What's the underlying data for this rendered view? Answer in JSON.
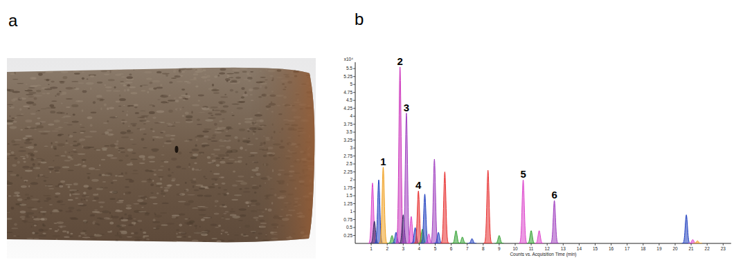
{
  "panel_labels": [
    "a",
    "b"
  ],
  "chart_data": {
    "type": "chromatogram",
    "xlabel": "Counts vs. Acquisition Time (min)",
    "ylabel": "x10⁴",
    "xlim": [
      0,
      23.5
    ],
    "ylim": [
      0,
      5.7
    ],
    "xticks": [
      1,
      2,
      3,
      4,
      5,
      6,
      7,
      8,
      9,
      10,
      11,
      12,
      13,
      14,
      15,
      16,
      17,
      18,
      19,
      20,
      21,
      22,
      23
    ],
    "yticks": [
      0.25,
      0.5,
      0.75,
      1,
      1.25,
      1.5,
      1.75,
      2,
      2.25,
      2.5,
      2.75,
      3,
      3.25,
      3.5,
      3.75,
      4,
      4.25,
      4.5,
      4.75,
      5,
      5.25,
      5.5
    ],
    "grid": false,
    "data_labels": true,
    "peaks": {
      "x": [
        1.08,
        1.2,
        1.47,
        1.75,
        2.3,
        2.55,
        2.8,
        3.0,
        3.2,
        3.5,
        3.75,
        3.95,
        4.2,
        4.35,
        4.6,
        4.95,
        5.2,
        5.6,
        6.3,
        6.7,
        7.3,
        8.3,
        9.0,
        10.5,
        11.0,
        11.5,
        12.45,
        20.7,
        21.1,
        21.4
      ],
      "values": [
        1.9,
        0.7,
        2.0,
        2.4,
        0.25,
        0.35,
        5.55,
        0.9,
        4.1,
        0.85,
        0.5,
        1.65,
        0.45,
        1.55,
        0.3,
        2.65,
        0.35,
        2.25,
        0.4,
        0.2,
        0.15,
        2.3,
        0.25,
        2.0,
        0.4,
        0.4,
        1.35,
        0.9,
        0.12,
        0.08
      ],
      "colors": [
        "#dd44cc",
        "#303060",
        "#2040c0",
        "#f0a020",
        "#30a030",
        "#2040c0",
        "#cc33bb",
        "#303060",
        "#a040c0",
        "#dd44cc",
        "#2040c0",
        "#e83030",
        "#30a030",
        "#2040c0",
        "#dd44cc",
        "#a040c0",
        "#2040c0",
        "#e83030",
        "#30a030",
        "#30a030",
        "#2040c0",
        "#e83030",
        "#30a030",
        "#dd44cc",
        "#30a030",
        "#dd44cc",
        "#a040c0",
        "#2040c0",
        "#dd44cc",
        "#f0a020"
      ],
      "labels": [
        null,
        null,
        null,
        "1",
        null,
        null,
        "2",
        null,
        "3",
        null,
        null,
        "4",
        null,
        null,
        null,
        null,
        null,
        null,
        null,
        null,
        null,
        null,
        null,
        "5",
        null,
        null,
        "6",
        null,
        null,
        null
      ]
    }
  }
}
